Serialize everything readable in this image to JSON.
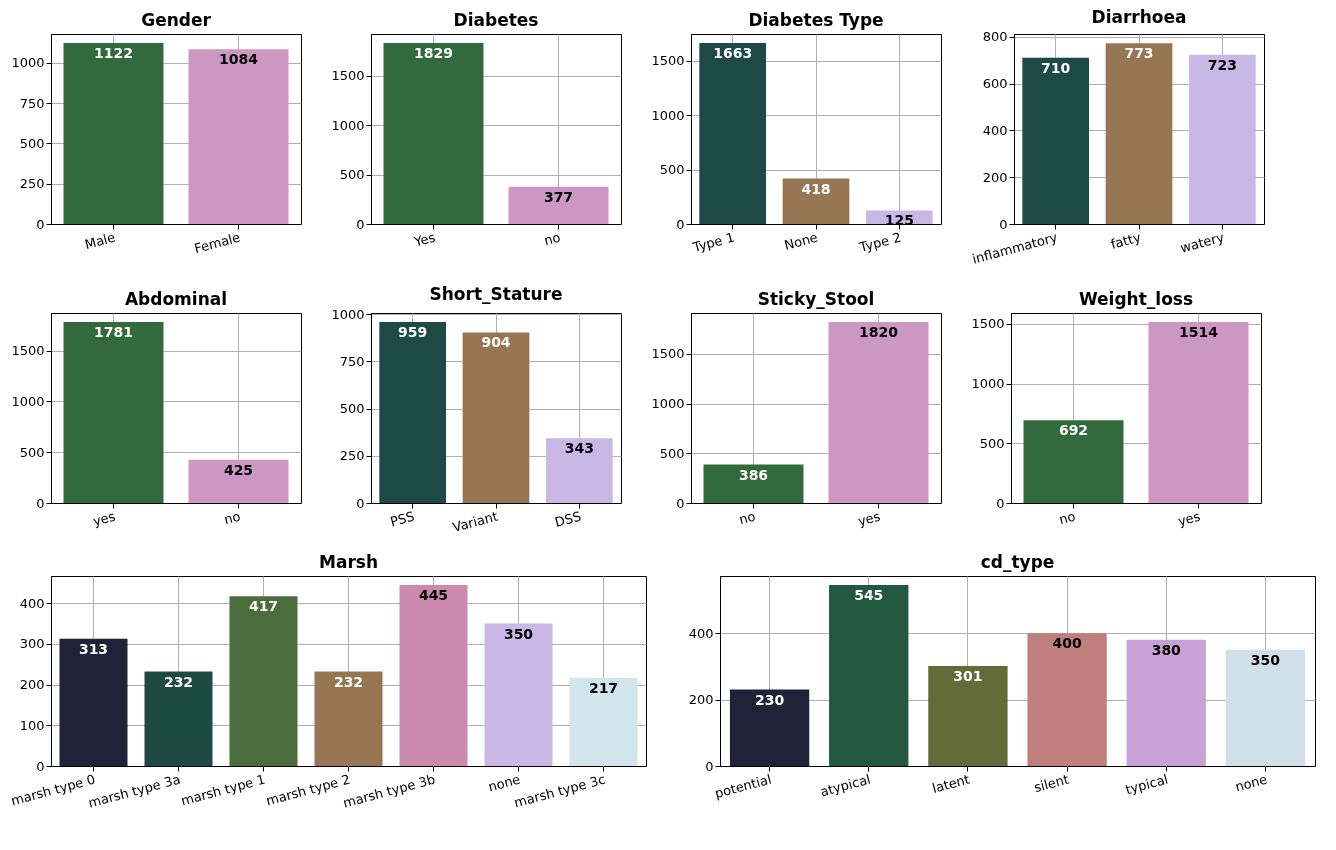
{
  "chart_data": [
    {
      "type": "bar",
      "title": "Gender",
      "categories": [
        "Male",
        "Female"
      ],
      "values": [
        1122,
        1084
      ],
      "colors": [
        "#336a3d",
        "#cc97c3"
      ],
      "ylim": [
        0,
        1178
      ],
      "yticks": [
        0,
        250,
        500,
        750,
        1000
      ],
      "grid": true,
      "data_labels": true
    },
    {
      "type": "bar",
      "title": "Diabetes",
      "categories": [
        "Yes",
        "no"
      ],
      "values": [
        1829,
        377
      ],
      "colors": [
        "#336a3d",
        "#cc97c3"
      ],
      "ylim": [
        0,
        1920
      ],
      "yticks": [
        0,
        500,
        1000,
        1500
      ],
      "grid": true,
      "data_labels": true
    },
    {
      "type": "bar",
      "title": "Diabetes Type",
      "categories": [
        "Type 1",
        "None",
        "Type 2"
      ],
      "values": [
        1663,
        418,
        125
      ],
      "colors": [
        "#1d4a45",
        "#977753",
        "#c9b8e6"
      ],
      "ylim": [
        0,
        1746
      ],
      "yticks": [
        0,
        500,
        1000,
        1500
      ],
      "grid": true,
      "data_labels": true
    },
    {
      "type": "bar",
      "title": "Diarrhoea",
      "categories": [
        "inflammatory",
        "fatty",
        "watery"
      ],
      "values": [
        710,
        773,
        723
      ],
      "colors": [
        "#1d4a45",
        "#977753",
        "#c9b8e6"
      ],
      "ylim": [
        0,
        812
      ],
      "yticks": [
        0,
        200,
        400,
        600,
        800
      ],
      "grid": true,
      "data_labels": true
    },
    {
      "type": "bar",
      "title": "Abdominal",
      "categories": [
        "yes",
        "no"
      ],
      "values": [
        1781,
        425
      ],
      "colors": [
        "#336a3d",
        "#cc97c3"
      ],
      "ylim": [
        0,
        1870
      ],
      "yticks": [
        0,
        500,
        1000,
        1500
      ],
      "grid": true,
      "data_labels": true
    },
    {
      "type": "bar",
      "title": "Short_Stature",
      "categories": [
        "PSS",
        "Variant",
        "DSS"
      ],
      "values": [
        959,
        904,
        343
      ],
      "colors": [
        "#1d4a45",
        "#977753",
        "#c9b8e6"
      ],
      "ylim": [
        0,
        1007
      ],
      "yticks": [
        0,
        250,
        500,
        750,
        1000
      ],
      "grid": true,
      "data_labels": true
    },
    {
      "type": "bar",
      "title": "Sticky_Stool",
      "categories": [
        "no",
        "yes"
      ],
      "values": [
        386,
        1820
      ],
      "colors": [
        "#336a3d",
        "#cc97c3"
      ],
      "ylim": [
        0,
        1911
      ],
      "yticks": [
        0,
        500,
        1000,
        1500
      ],
      "grid": true,
      "data_labels": true
    },
    {
      "type": "bar",
      "title": "Weight_loss",
      "categories": [
        "no",
        "yes"
      ],
      "values": [
        692,
        1514
      ],
      "colors": [
        "#336a3d",
        "#cc97c3"
      ],
      "ylim": [
        0,
        1590
      ],
      "yticks": [
        0,
        500,
        1000,
        1500
      ],
      "grid": true,
      "data_labels": true
    },
    {
      "type": "bar",
      "title": "Marsh",
      "categories": [
        "marsh type 0",
        "marsh type 3a",
        "marsh type 1",
        "marsh type 2",
        "marsh type 3b",
        "none",
        "marsh type 3c"
      ],
      "values": [
        313,
        232,
        417,
        232,
        445,
        350,
        217
      ],
      "colors": [
        "#202239",
        "#1c4a43",
        "#4a6d3b",
        "#977753",
        "#cb8aab",
        "#c9b8e6",
        "#d1e5ec"
      ],
      "ylim": [
        0,
        467
      ],
      "yticks": [
        0,
        100,
        200,
        300,
        400
      ],
      "grid": true,
      "data_labels": true
    },
    {
      "type": "bar",
      "title": "cd_type",
      "categories": [
        "potential",
        "atypical",
        "latent",
        "silent",
        "typical",
        "none"
      ],
      "values": [
        230,
        545,
        301,
        400,
        380,
        350
      ],
      "colors": [
        "#202239",
        "#225841",
        "#636b39",
        "#be7f7d",
        "#c8a2d7",
        "#cfe0ea"
      ],
      "ylim": [
        0,
        572
      ],
      "yticks": [
        0,
        200,
        400
      ],
      "grid": true,
      "data_labels": true
    }
  ]
}
